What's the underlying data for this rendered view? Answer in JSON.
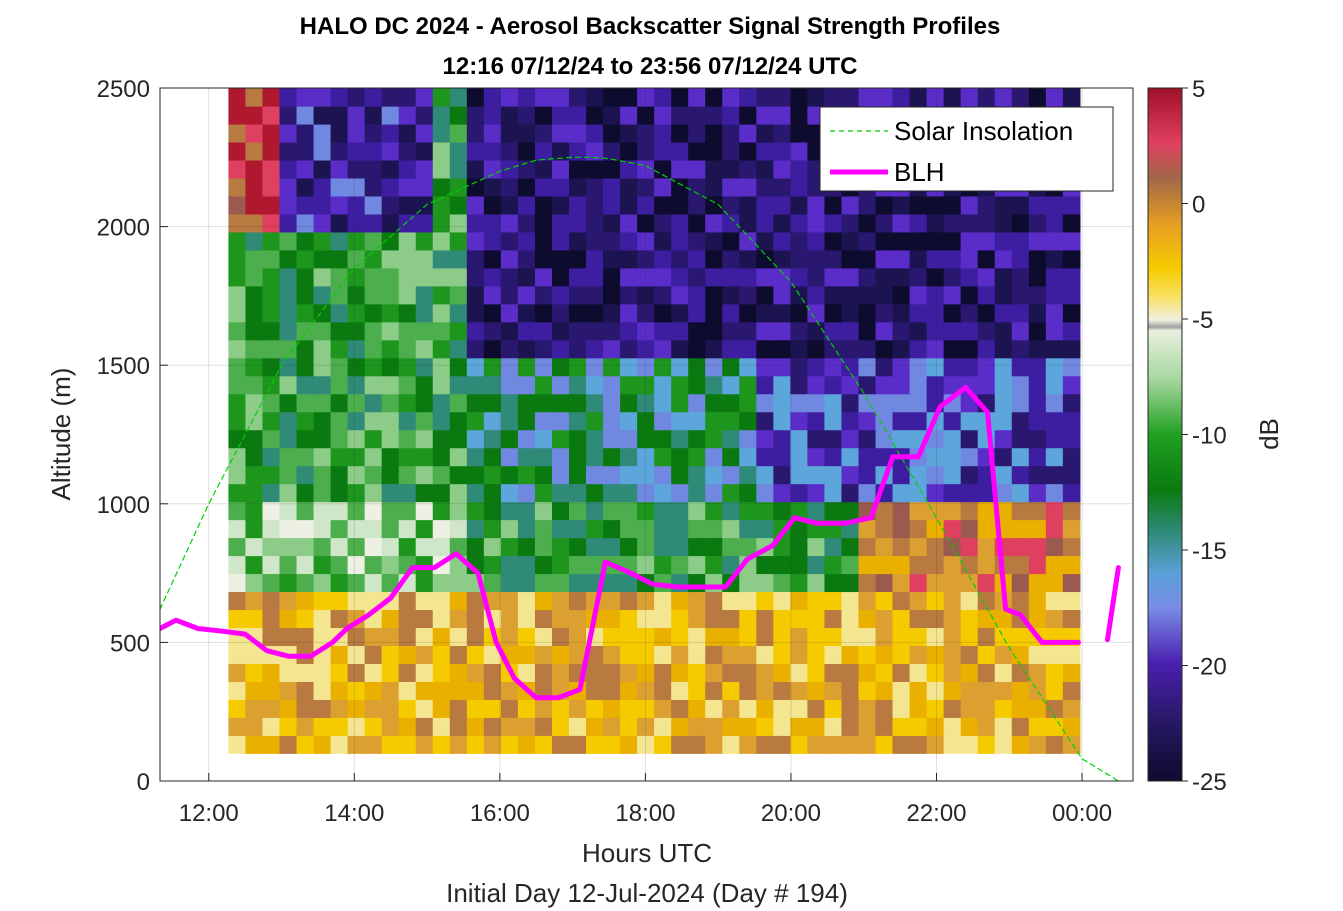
{
  "title": {
    "line1": "HALO DC 2024 - Aerosol Backscatter Signal Strength Profiles",
    "line2": "12:16 07/12/24 to 23:56 07/12/24  UTC"
  },
  "xaxis": {
    "label": "Hours UTC",
    "sublabel": "Initial Day 12-Jul-2024 (Day # 194)",
    "ticks": [
      "12:00",
      "14:00",
      "16:00",
      "18:00",
      "20:00",
      "22:00",
      "00:00"
    ]
  },
  "yaxis": {
    "label": "Altitude (m)",
    "ticks": [
      "0",
      "500",
      "1000",
      "1500",
      "2000",
      "2500"
    ]
  },
  "colorbar": {
    "label": "dB",
    "ticks": [
      "5",
      "0",
      "-5",
      "-10",
      "-15",
      "-20",
      "-25"
    ]
  },
  "legend": {
    "solar": "Solar Insolation",
    "blh": "BLH"
  },
  "chart_data": {
    "type": "heatmap",
    "title": "HALO DC 2024 - Aerosol Backscatter Signal Strength Profiles",
    "xlabel": "Hours UTC",
    "ylabel": "Altitude (m)",
    "xlim_hours": [
      11.33,
      24.7
    ],
    "ylim": [
      0,
      2500
    ],
    "color_scale": {
      "label": "dB",
      "range": [
        -25,
        5
      ]
    },
    "grid": true,
    "legend_position": "top-right",
    "heatmap_hours": [
      12.27,
      23.97
    ],
    "heatmap_altitude_m": [
      100,
      2500
    ],
    "heatmap_summary": [
      {
        "altitude_band_m": [
          100,
          700
        ],
        "typical_db": -7,
        "note": "yellow/orange aerosol layer"
      },
      {
        "altitude_band_m": [
          700,
          1400
        ],
        "typical_db": -15,
        "note": "green/purple mixed"
      },
      {
        "altitude_band_m": [
          1400,
          2500
        ],
        "typical_db": -22,
        "note": "purple/dark background"
      }
    ],
    "series": [
      {
        "name": "BLH",
        "color": "#ff00ff",
        "x": [
          11.33,
          11.55,
          11.85,
          12.2,
          12.5,
          12.8,
          13.1,
          13.4,
          13.7,
          13.9,
          14.2,
          14.5,
          14.8,
          15.1,
          15.4,
          15.7,
          15.95,
          16.2,
          16.5,
          16.8,
          17.1,
          17.45,
          17.8,
          18.1,
          18.45,
          18.8,
          19.1,
          19.4,
          19.75,
          20.05,
          20.35,
          20.75,
          21.1,
          21.4,
          21.75,
          22.05,
          22.4,
          22.7,
          22.95,
          23.15,
          23.45,
          23.75,
          23.95
        ],
        "y": [
          550,
          580,
          550,
          540,
          530,
          470,
          450,
          450,
          500,
          550,
          600,
          660,
          770,
          770,
          820,
          750,
          500,
          370,
          300,
          300,
          330,
          790,
          750,
          710,
          700,
          700,
          700,
          800,
          850,
          950,
          930,
          930,
          950,
          1170,
          1170,
          1350,
          1420,
          1330,
          620,
          600,
          500,
          500,
          500
        ]
      },
      {
        "name": "BLH",
        "color": "#ff00ff",
        "x": [
          24.35,
          24.5
        ],
        "y": [
          510,
          770
        ]
      },
      {
        "name": "Solar Insolation",
        "color": "#00d000",
        "style": "dashed",
        "x": [
          11.33,
          12.0,
          13.0,
          14.0,
          15.0,
          16.0,
          16.5,
          17.0,
          17.25,
          17.5,
          18.0,
          18.5,
          19.0,
          20.0,
          21.0,
          22.0,
          23.0,
          24.0,
          24.5
        ],
        "y": [
          620,
          1000,
          1500,
          1850,
          2080,
          2200,
          2240,
          2250,
          2250,
          2245,
          2220,
          2150,
          2080,
          1800,
          1400,
          950,
          480,
          80,
          0
        ]
      }
    ]
  }
}
